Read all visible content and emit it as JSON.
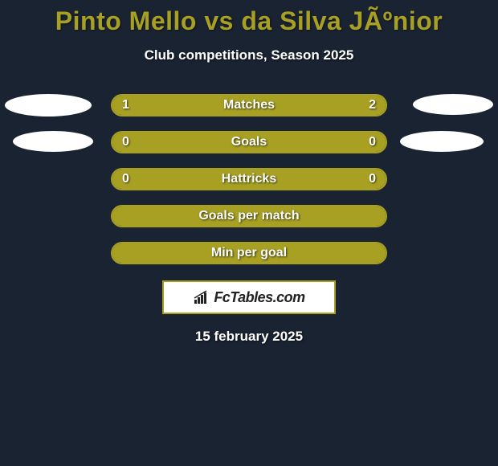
{
  "background_color": "#1a2332",
  "accent_color": "#a7a023",
  "text_color": "#ffffff",
  "title": "Pinto Mello vs da Silva JÃºnior",
  "title_color": "#a7a023",
  "title_fontsize": 32,
  "subtitle": "Club competitions, Season 2025",
  "subtitle_fontsize": 17,
  "bar_track_width": 344,
  "bar_track_height": 28,
  "bar_border_color": "#a7a023",
  "bar_fill_color": "#a7a023",
  "rows": [
    {
      "label": "Matches",
      "left_value": "1",
      "right_value": "2",
      "left_fill_pct": 33,
      "right_fill_pct": 67,
      "has_values": true,
      "ovals": {
        "left": true,
        "right": true,
        "left_class": "oval-left-1",
        "right_class": "oval-right-1"
      }
    },
    {
      "label": "Goals",
      "left_value": "0",
      "right_value": "0",
      "left_fill_pct": 0,
      "right_fill_pct": 100,
      "has_values": true,
      "ovals": {
        "left": true,
        "right": true,
        "left_class": "oval-left-2",
        "right_class": "oval-right-2"
      }
    },
    {
      "label": "Hattricks",
      "left_value": "0",
      "right_value": "0",
      "left_fill_pct": 0,
      "right_fill_pct": 100,
      "has_values": true,
      "ovals": {
        "left": false,
        "right": false
      }
    },
    {
      "label": "Goals per match",
      "left_value": "",
      "right_value": "",
      "left_fill_pct": 0,
      "right_fill_pct": 100,
      "has_values": false,
      "ovals": {
        "left": false,
        "right": false
      }
    },
    {
      "label": "Min per goal",
      "left_value": "",
      "right_value": "",
      "left_fill_pct": 0,
      "right_fill_pct": 100,
      "has_values": false,
      "ovals": {
        "left": false,
        "right": false
      }
    }
  ],
  "logo_text": "FcTables.com",
  "logo_icon_color": "#222222",
  "date": "15 february 2025",
  "oval_color": "#ffffff"
}
